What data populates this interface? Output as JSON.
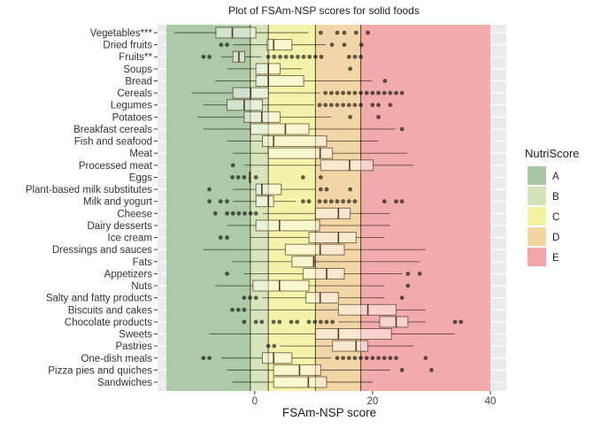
{
  "chart_data": {
    "type": "boxplot",
    "title": "Plot of FSAm-NSP scores for solid foods",
    "xlabel": "FSAm-NSP score",
    "ylabel": "",
    "xlim": [
      -16.5,
      42.7
    ],
    "x_ticks": [
      0,
      20,
      40
    ],
    "x_tick_labels": [
      "0",
      "20",
      "40"
    ],
    "grid": true,
    "legend": {
      "title": "NutriScore",
      "placement": "right",
      "entries": [
        {
          "label": "A",
          "color": "#a8c7a2",
          "from": -15,
          "to": -0.75
        },
        {
          "label": "B",
          "color": "#d4e4b8",
          "from": -0.75,
          "to": 2.3
        },
        {
          "label": "C",
          "color": "#f3f3a4",
          "from": 2.3,
          "to": 10.3
        },
        {
          "label": "D",
          "color": "#f3d4a3",
          "from": 10.3,
          "to": 18
        },
        {
          "label": "E",
          "color": "#f2a6a6",
          "from": 18,
          "to": 40
        }
      ]
    },
    "series": [
      {
        "name": "Vegetables***",
        "lo": -13.7,
        "q1": -6.6,
        "med": -3.8,
        "q3": 0.2,
        "hi": 9.1,
        "out": [
          11.2,
          14,
          15.2,
          17.2,
          19.2
        ]
      },
      {
        "name": "Dried fruits",
        "lo": -3.7,
        "q1": 2.1,
        "med": 3.2,
        "q3": 6.3,
        "hi": 12.1,
        "out": [
          -5.7,
          -4.7,
          13.1,
          15.2,
          18.1
        ]
      },
      {
        "name": "Fruits**",
        "lo": -5.7,
        "q1": -3.7,
        "med": -2.7,
        "q3": -1.7,
        "hi": 1.1,
        "out": [
          -8.7,
          -7.7,
          2.3,
          3.3,
          4.3,
          5.3,
          6.3,
          7.3,
          8.3,
          9.3,
          10.3,
          11.3,
          16,
          17,
          18
        ]
      },
      {
        "name": "Soups",
        "lo": -4.7,
        "q1": 0.2,
        "med": 2.3,
        "q3": 4.3,
        "hi": 8.1,
        "out": [
          16.2
        ]
      },
      {
        "name": "Bread",
        "lo": -6.7,
        "q1": 0.2,
        "med": 2.3,
        "q3": 8.3,
        "hi": 20,
        "out": [
          22.1
        ]
      },
      {
        "name": "Cereals",
        "lo": -10.7,
        "q1": -3.7,
        "med": -0.7,
        "q3": 2.3,
        "hi": 11.1,
        "out": [
          12,
          13,
          14,
          15,
          16,
          17,
          18,
          19,
          20,
          21,
          22,
          23,
          24,
          25
        ]
      },
      {
        "name": "Legumes",
        "lo": -8.7,
        "q1": -4.7,
        "med": -1.8,
        "q3": 1.3,
        "hi": 10.1,
        "out": [
          11,
          12,
          13,
          14,
          15,
          16,
          17,
          18,
          20,
          21,
          23
        ]
      },
      {
        "name": "Potatoes",
        "lo": -9.7,
        "q1": -1.8,
        "med": 1.2,
        "q3": 4.3,
        "hi": 13,
        "out": [
          16.2,
          21
        ]
      },
      {
        "name": "Breakfast cereals",
        "lo": -8.7,
        "q1": -0.7,
        "med": 5.2,
        "q3": 9.2,
        "hi": 23.9,
        "out": [
          25
        ]
      },
      {
        "name": "Fish and seafood",
        "lo": -4.7,
        "q1": 1.3,
        "med": 3.2,
        "q3": 12.2,
        "hi": 21,
        "out": []
      },
      {
        "name": "Meat",
        "lo": -3.7,
        "q1": 2.3,
        "med": 11.1,
        "q3": 13.2,
        "hi": 25.9,
        "out": []
      },
      {
        "name": "Processed meat",
        "lo": -1.8,
        "q1": 11.2,
        "med": 16.1,
        "q3": 20.1,
        "hi": 27,
        "out": [
          -3.7
        ]
      },
      {
        "name": "Eggs",
        "lo": -0.85,
        "q1": -0.85,
        "med": -0.85,
        "q3": -0.85,
        "hi": -0.85,
        "out": [
          -3.8,
          -2.8,
          -1.8,
          0.2,
          8.2,
          11.2
        ]
      },
      {
        "name": "Plant-based milk substitutes",
        "lo": -3.7,
        "q1": 0.2,
        "med": 1.2,
        "q3": 4.5,
        "hi": 10.3,
        "out": [
          -7.7,
          11.2,
          12.2,
          16.2
        ]
      },
      {
        "name": "Milk and yogurt",
        "lo": -3.7,
        "q1": 0.2,
        "med": 2.3,
        "q3": 3.2,
        "hi": 7,
        "out": [
          -7.7,
          -5.8,
          -4.7,
          8.2,
          9.2,
          11,
          12,
          13,
          14,
          15,
          16,
          17,
          22,
          24,
          25
        ]
      },
      {
        "name": "Cheese",
        "lo": 1.3,
        "q1": 10.3,
        "med": 14.2,
        "q3": 16.2,
        "hi": 23,
        "out": [
          -6.7,
          -4.7,
          -3.7,
          -2.7,
          -1.7,
          -0.7,
          0.2
        ]
      },
      {
        "name": "Dairy desserts",
        "lo": -4.7,
        "q1": 0.2,
        "med": 4.2,
        "q3": 11,
        "hi": 23,
        "out": []
      },
      {
        "name": "Ice cream",
        "lo": -0.7,
        "q1": 9.2,
        "med": 14.2,
        "q3": 17.2,
        "hi": 22,
        "out": [
          -5.8,
          -4.7
        ]
      },
      {
        "name": "Dressings and sauces",
        "lo": -8.7,
        "q1": 5.2,
        "med": 11.1,
        "q3": 15.2,
        "hi": 29,
        "out": []
      },
      {
        "name": "Fats",
        "lo": -3.8,
        "q1": 6.3,
        "med": 10,
        "q3": 10.1,
        "hi": 28,
        "out": []
      },
      {
        "name": "Appetizers",
        "lo": -1.8,
        "q1": 8.2,
        "med": 12.2,
        "q3": 15.2,
        "hi": 25,
        "out": [
          -4.7,
          26,
          28
        ]
      },
      {
        "name": "Nuts",
        "lo": -6.7,
        "q1": -0.3,
        "med": 4.2,
        "q3": 9.2,
        "hi": 22,
        "out": [
          26
        ]
      },
      {
        "name": "Salty and fatty products",
        "lo": 1.3,
        "q1": 8.7,
        "med": 11.1,
        "q3": 14.2,
        "hi": 22,
        "out": [
          -1.8,
          -0.8,
          0.2,
          25
        ]
      },
      {
        "name": "Biscuits and cakes",
        "lo": -0.7,
        "q1": 14.2,
        "med": 19.2,
        "q3": 24,
        "hi": 29,
        "out": [
          -3.8,
          -2.8,
          -1.8
        ]
      },
      {
        "name": "Chocolate products",
        "lo": 14.2,
        "q1": 21.2,
        "med": 24,
        "q3": 26,
        "hi": 29,
        "out": [
          -1.8,
          0.2,
          1.2,
          3.2,
          4.2,
          6.2,
          7.2,
          9.2,
          10.2,
          11.2,
          12.2,
          13.2,
          34,
          35
        ]
      },
      {
        "name": "Sweets",
        "lo": -7.7,
        "q1": 10.3,
        "med": 14.2,
        "q3": 23.2,
        "hi": 34,
        "out": []
      },
      {
        "name": "Pastries",
        "lo": 4.3,
        "q1": 13.2,
        "med": 17.2,
        "q3": 19.2,
        "hi": 27,
        "out": [
          2.3,
          3.3
        ]
      },
      {
        "name": "One-dish meals",
        "lo": -5.7,
        "q1": 1.3,
        "med": 3.2,
        "q3": 6.3,
        "hi": 13,
        "out": [
          -8.7,
          -7.7,
          14,
          15,
          16,
          17,
          18,
          19,
          20,
          21,
          22,
          23,
          24,
          29
        ]
      },
      {
        "name": "Pizza pies and quiches",
        "lo": -4.7,
        "q1": 3.2,
        "med": 7.6,
        "q3": 11.2,
        "hi": 23,
        "out": [
          25,
          30
        ]
      },
      {
        "name": "Sandwiches",
        "lo": -3.8,
        "q1": 3.2,
        "med": 9.1,
        "q3": 12.2,
        "hi": 20,
        "out": []
      }
    ]
  }
}
